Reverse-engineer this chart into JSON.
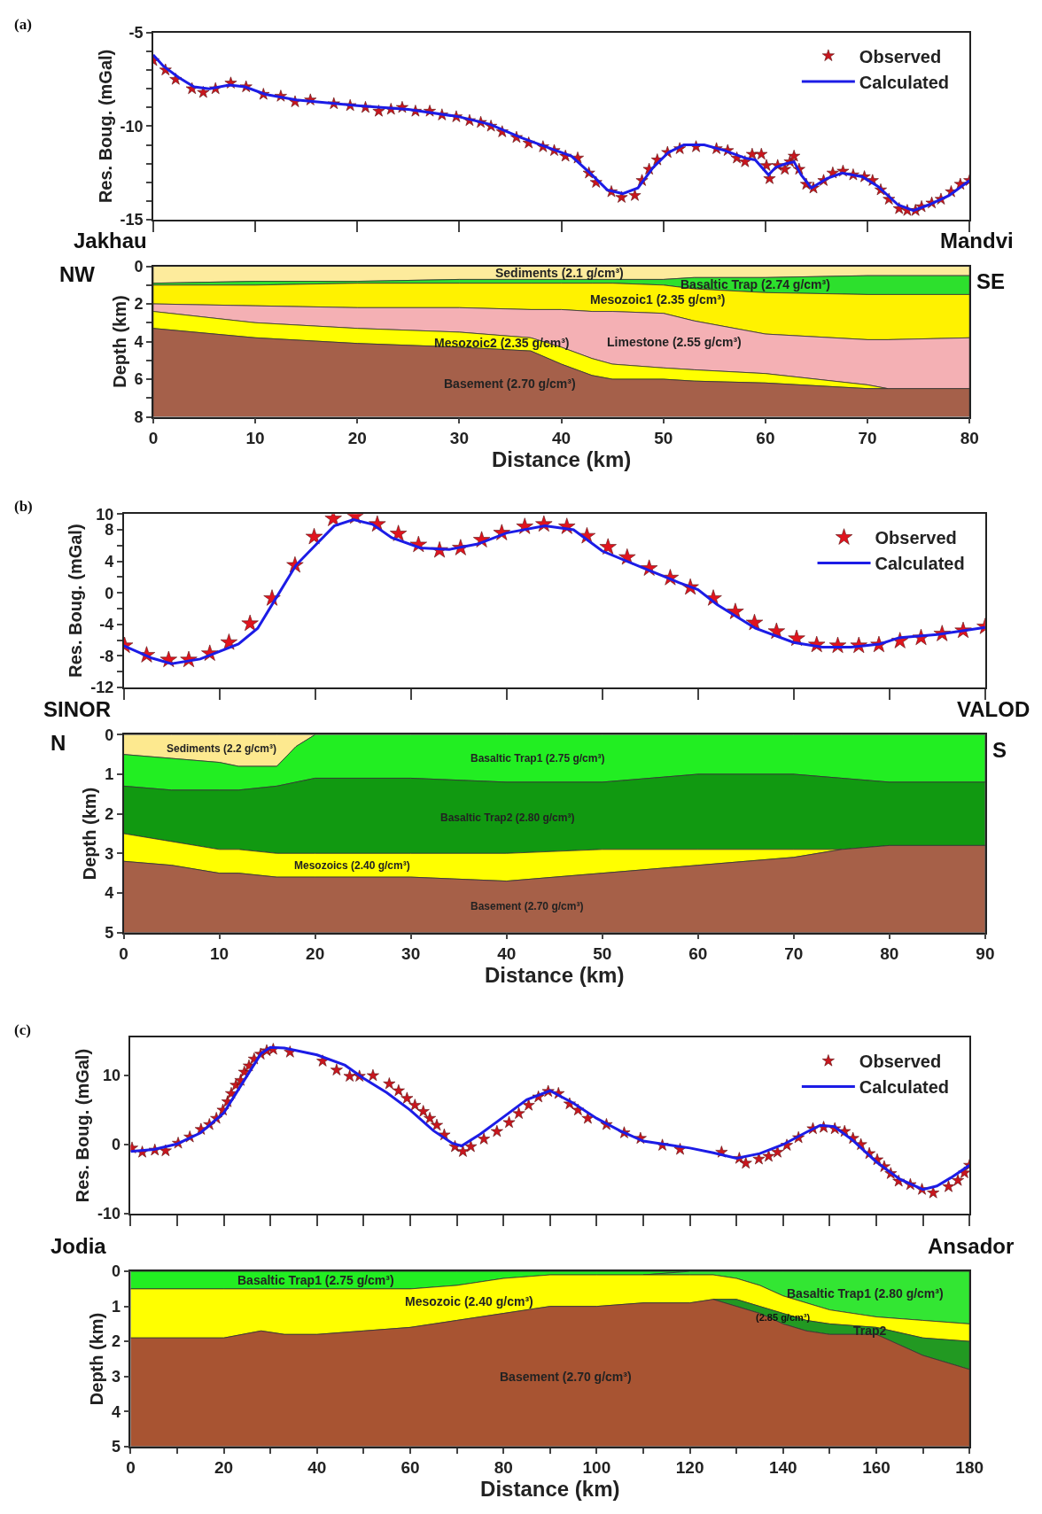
{
  "chart_data": [
    {
      "type": "line",
      "ylabel": "Res. Boug. (mGal)",
      "annotations": [
        "(a)"
      ],
      "xlim": [
        0,
        80
      ],
      "xticks": [
        0,
        10,
        20,
        30,
        40,
        50,
        60,
        70,
        80
      ],
      "ylim": [
        -15,
        -5
      ],
      "yticks": [
        -5,
        {
          "value": -6,
          "label": null
        },
        {
          "value": -7,
          "label": null
        },
        {
          "value": -8,
          "label": null
        },
        {
          "value": -9,
          "label": null
        },
        -10,
        {
          "value": -11,
          "label": null
        },
        {
          "value": -12,
          "label": null
        },
        {
          "value": -13,
          "label": null
        },
        {
          "value": -14,
          "label": null
        },
        -15
      ],
      "tick_labels": "y",
      "legend": "top right",
      "marker": "star",
      "line_style": "solid",
      "series": [
        {
          "name": "Observed",
          "type": "scatter",
          "color": "#c8161e",
          "x": [
            0,
            1.2,
            2.2,
            3.8,
            4.9,
            6.1,
            7.6,
            9.1,
            10.8,
            12.5,
            13.9,
            15.4,
            17.7,
            19.3,
            20.8,
            22.1,
            23.3,
            24.4,
            25.7,
            27.1,
            28.3,
            29.7,
            31.0,
            32.1,
            33.1,
            34.2,
            35.6,
            36.8,
            38.2,
            39.3,
            40.4,
            41.6,
            42.7,
            43.4,
            44.9,
            45.9,
            47.2,
            47.9,
            48.6,
            49.4,
            50.4,
            51.6,
            53.2,
            55.2,
            56.3,
            57.2,
            58.0,
            58.7,
            59.6,
            60.1,
            60.4,
            61.2,
            61.9,
            62.4,
            62.8,
            63.3,
            64.0,
            64.7,
            65.7,
            66.6,
            67.6,
            68.6,
            69.7,
            70.5,
            71.3,
            72.1,
            73.1,
            73.9,
            74.7,
            75.3,
            76.3,
            77.2,
            78.2,
            79.1,
            80
          ],
          "values": [
            -6.5,
            -7.0,
            -7.5,
            -8.0,
            -8.2,
            -8.0,
            -7.7,
            -7.9,
            -8.3,
            -8.4,
            -8.7,
            -8.6,
            -8.8,
            -8.9,
            -9.0,
            -9.2,
            -9.1,
            -9.0,
            -9.2,
            -9.2,
            -9.4,
            -9.5,
            -9.7,
            -9.8,
            -10.0,
            -10.3,
            -10.6,
            -10.9,
            -11.1,
            -11.3,
            -11.6,
            -11.7,
            -12.5,
            -13.0,
            -13.5,
            -13.8,
            -13.7,
            -12.9,
            -12.3,
            -11.8,
            -11.4,
            -11.2,
            -11.1,
            -11.2,
            -11.3,
            -11.7,
            -11.9,
            -11.5,
            -11.5,
            -12.1,
            -12.8,
            -12.1,
            -12.3,
            -11.9,
            -11.6,
            -12.3,
            -13.1,
            -13.3,
            -12.9,
            -12.5,
            -12.4,
            -12.6,
            -12.7,
            -12.9,
            -13.4,
            -13.9,
            -14.4,
            -14.5,
            -14.5,
            -14.3,
            -14.1,
            -13.9,
            -13.5,
            -13.1,
            -12.9
          ]
        },
        {
          "name": "Calculated",
          "type": "line",
          "marker": "none",
          "color": "#1c1ce6",
          "x": [
            0,
            1,
            2.5,
            4,
            5.5,
            7.5,
            9,
            11,
            14,
            20,
            25,
            30,
            33,
            36,
            39,
            41,
            43,
            44.5,
            46,
            47.5,
            49,
            50.5,
            52,
            54,
            56,
            58,
            59,
            60.3,
            61,
            62,
            62.8,
            63.5,
            64.5,
            66,
            67.5,
            69.5,
            71,
            73,
            74.5,
            76,
            78,
            80
          ],
          "values": [
            -6.2,
            -6.8,
            -7.4,
            -7.9,
            -8.0,
            -7.8,
            -7.9,
            -8.3,
            -8.6,
            -8.9,
            -9.1,
            -9.5,
            -9.9,
            -10.6,
            -11.2,
            -11.6,
            -12.6,
            -13.4,
            -13.6,
            -13.3,
            -12.2,
            -11.4,
            -11.0,
            -11.0,
            -11.3,
            -11.7,
            -11.8,
            -12.6,
            -12.2,
            -12.0,
            -11.9,
            -12.6,
            -13.3,
            -12.8,
            -12.5,
            -12.7,
            -13.2,
            -14.2,
            -14.5,
            -14.2,
            -13.7,
            -12.9
          ]
        }
      ]
    },
    {
      "type": "area",
      "stacked": true,
      "xlabel": "Distance (km)",
      "ylabel": "Depth (km)",
      "annotations": [
        "Jakhau",
        "Mandvi",
        "NW",
        "SE"
      ],
      "x": [
        0,
        10,
        20,
        30,
        37,
        40,
        43,
        45,
        50,
        53,
        60,
        70,
        72,
        80
      ],
      "xlim": [
        0,
        80
      ],
      "xticks": [
        0,
        10,
        20,
        30,
        40,
        50,
        60,
        70,
        80
      ],
      "ylim": [
        8,
        0
      ],
      "yticks": [
        0,
        {
          "value": 1,
          "label": null
        },
        2,
        {
          "value": 3,
          "label": null
        },
        4,
        {
          "value": 5,
          "label": null
        },
        6,
        {
          "value": 7,
          "label": null
        },
        8
      ],
      "series": [
        {
          "name": "Sediments (2.1 g/cm³)",
          "color": "#fdeb9c",
          "values": [
            0.9,
            0.8,
            0.8,
            0.7,
            0.7,
            0.7,
            0.7,
            0.7,
            0.7,
            0.6,
            0.6,
            0.5,
            0.5,
            0.5
          ]
        },
        {
          "name": "Basaltic Trap (2.74 g/cm³)",
          "color": "#2de02d",
          "values": [
            0.1,
            0.2,
            0.1,
            0.2,
            0.2,
            0.2,
            0.2,
            0.2,
            0.3,
            0.6,
            0.8,
            1.0,
            1.0,
            1.0
          ]
        },
        {
          "name": "Mesozoic1 (2.35 g/cm³)",
          "color": "#fff200",
          "values": [
            1.0,
            1.1,
            1.3,
            1.3,
            1.4,
            1.4,
            1.5,
            1.5,
            1.5,
            1.7,
            2.2,
            2.4,
            2.4,
            2.3
          ]
        },
        {
          "name": "Limestone (2.55 g/cm³)",
          "color": "#f4b0b4",
          "values": [
            0.4,
            0.9,
            1.1,
            1.3,
            1.5,
            2.0,
            2.5,
            2.8,
            2.9,
            2.6,
            2.1,
            2.4,
            2.6,
            2.7
          ]
        },
        {
          "name": "Mesozoic2 (2.35 g/cm³)",
          "color": "#ffff00",
          "values": [
            0.9,
            0.8,
            0.8,
            0.8,
            0.7,
            0.9,
            0.9,
            0.8,
            0.6,
            0.6,
            0.5,
            0.2,
            0,
            null
          ]
        },
        {
          "name": "Basement (2.70 g/cm³)",
          "color": "#a5604a",
          "values": [
            4.7,
            4.2,
            3.9,
            3.7,
            3.5,
            2.8,
            2.2,
            2.0,
            2.0,
            1.9,
            1.8,
            1.5,
            1.5,
            1.5
          ]
        }
      ]
    },
    {
      "type": "line",
      "ylabel": "Res. Boug. (mGal)",
      "annotations": [
        "(b)"
      ],
      "xlim": [
        0,
        90
      ],
      "xticks": [
        0,
        10,
        20,
        30,
        40,
        50,
        60,
        70,
        80,
        90
      ],
      "ylim": [
        -12,
        10
      ],
      "yticks": [
        -12,
        {
          "value": -10,
          "label": null
        },
        -8,
        {
          "value": -6,
          "label": null
        },
        -4,
        {
          "value": -2,
          "label": null
        },
        0,
        {
          "value": 2,
          "label": null
        },
        4,
        {
          "value": 6,
          "label": null
        },
        8,
        10
      ],
      "tick_labels": "y",
      "legend": "top right",
      "marker": "star",
      "line_style": "solid",
      "series": [
        {
          "name": "Observed",
          "type": "scatter",
          "color": "#e0141e",
          "x": [
            0.1,
            2.4,
            4.7,
            6.8,
            9.0,
            11.0,
            13.2,
            15.5,
            17.9,
            19.9,
            21.9,
            24.2,
            26.5,
            28.7,
            30.8,
            33.0,
            35.2,
            37.4,
            39.5,
            41.9,
            43.9,
            46.3,
            48.4,
            50.6,
            52.6,
            54.9,
            57.1,
            59.2,
            61.6,
            63.9,
            65.9,
            68.2,
            70.3,
            72.4,
            74.6,
            76.8,
            78.9,
            81.1,
            83.3,
            85.5,
            87.7,
            90.0
          ],
          "values": [
            -6.7,
            -7.9,
            -8.5,
            -8.5,
            -7.7,
            -6.3,
            -3.9,
            -0.7,
            3.5,
            7.1,
            9.4,
            9.7,
            8.7,
            7.5,
            6.1,
            5.4,
            5.7,
            6.7,
            7.6,
            8.4,
            8.7,
            8.4,
            7.2,
            5.8,
            4.5,
            3.1,
            1.9,
            0.7,
            -0.7,
            -2.4,
            -3.8,
            -4.9,
            -5.8,
            -6.6,
            -6.7,
            -6.7,
            -6.6,
            -6.1,
            -5.7,
            -5.2,
            -4.8,
            -4.3
          ]
        },
        {
          "name": "Calculated",
          "type": "line",
          "marker": "none",
          "color": "#1c1ce6",
          "x": [
            0,
            3,
            5,
            8,
            12,
            14,
            16,
            18,
            20,
            22,
            24,
            26,
            28,
            31,
            34,
            37,
            40,
            44,
            47,
            50,
            54,
            58,
            60,
            62,
            66,
            70,
            73,
            76,
            79,
            81,
            85,
            90
          ],
          "values": [
            -6.7,
            -8.3,
            -9.0,
            -8.4,
            -6.5,
            -4.5,
            -0.5,
            3.5,
            6.0,
            8.5,
            9.3,
            8.7,
            7.0,
            5.7,
            5.5,
            6.2,
            7.6,
            8.5,
            8.0,
            5.3,
            3.3,
            1.3,
            0.4,
            -1.5,
            -4.5,
            -6.3,
            -6.9,
            -6.9,
            -6.5,
            -5.7,
            -5.3,
            -4.4
          ]
        }
      ]
    },
    {
      "type": "area",
      "stacked": true,
      "xlabel": "Distance (km)",
      "ylabel": "Depth (km)",
      "annotations": [
        "SINOR",
        "VALOD",
        "N",
        "S"
      ],
      "x": [
        0,
        5,
        10,
        12,
        16,
        18,
        20,
        30,
        40,
        50,
        60,
        70,
        75,
        80,
        90
      ],
      "xlim": [
        0,
        90
      ],
      "xticks": [
        0,
        10,
        20,
        30,
        40,
        50,
        60,
        70,
        80,
        90
      ],
      "ylim": [
        5,
        0
      ],
      "yticks": [
        0,
        1,
        2,
        3,
        4,
        5
      ],
      "series": [
        {
          "name": "Sediments (2.2 g/cm³)",
          "color": "#fde98f",
          "values": [
            0.5,
            0.6,
            0.7,
            0.8,
            0.8,
            0.3,
            0,
            null,
            null,
            null,
            null,
            null,
            null,
            null,
            null
          ]
        },
        {
          "name": "Basaltic Trap1 (2.75 g/cm³)",
          "color": "#22ee22",
          "values": [
            0.8,
            0.8,
            0.7,
            0.6,
            0.5,
            0.9,
            1.1,
            1.1,
            1.2,
            1.2,
            1.0,
            1.0,
            1.1,
            1.2,
            1.2
          ]
        },
        {
          "name": "Basaltic Trap2 (2.80 g/cm³)",
          "color": "#119911",
          "values": [
            1.2,
            1.3,
            1.5,
            1.5,
            1.7,
            1.8,
            1.9,
            1.9,
            1.8,
            1.7,
            1.9,
            1.9,
            1.8,
            1.6,
            1.6
          ]
        },
        {
          "name": "Mesozoics (2.40 g/cm³)",
          "color": "#ffff00",
          "values": [
            0.7,
            0.6,
            0.6,
            0.6,
            0.6,
            0.6,
            0.6,
            0.6,
            0.7,
            0.6,
            0.4,
            0.2,
            0,
            null,
            null
          ]
        },
        {
          "name": "Basement (2.70 g/cm³)",
          "color": "#a66048",
          "values": [
            1.8,
            1.7,
            1.5,
            1.5,
            1.4,
            1.4,
            1.4,
            1.4,
            1.3,
            1.5,
            1.7,
            1.9,
            2.1,
            2.2,
            2.2
          ]
        }
      ]
    },
    {
      "type": "line",
      "ylabel": "Res. Boug. (mGal)",
      "annotations": [
        "(c)"
      ],
      "xlim": [
        0,
        180
      ],
      "xticks": [
        0,
        10,
        20,
        30,
        40,
        50,
        60,
        70,
        80,
        90,
        100,
        110,
        120,
        130,
        140,
        150,
        160,
        170,
        180
      ],
      "ylim": [
        -10,
        15.5
      ],
      "yticks": [
        -10,
        0,
        10
      ],
      "tick_labels": "y",
      "legend": "top right",
      "marker": "star",
      "line_style": "solid",
      "series": [
        {
          "name": "Observed",
          "type": "scatter",
          "color": "#c8161e",
          "x": [
            0.3,
            2.5,
            5.2,
            7.5,
            10.2,
            12.7,
            15.1,
            16.9,
            18.4,
            19.8,
            20.8,
            21.6,
            22.6,
            23.6,
            24.4,
            25.4,
            26.5,
            27.9,
            29.2,
            30.6,
            34.2,
            41.2,
            44.2,
            47.0,
            49.1,
            52.0,
            55.5,
            57.5,
            59.3,
            61.0,
            62.8,
            64.2,
            65.7,
            67.3,
            69.6,
            71.3,
            73.0,
            75.8,
            78.6,
            81.2,
            83.3,
            85.4,
            87.5,
            89.6,
            91.8,
            94.2,
            96.0,
            98.1,
            102.1,
            105.9,
            109.4,
            114.1,
            117.9,
            126.8,
            130.6,
            132.0,
            134.8,
            136.9,
            138.8,
            140.8,
            143.3,
            146.4,
            148.7,
            151.1,
            153.2,
            155.0,
            156.7,
            158.5,
            160.2,
            161.7,
            163.1,
            164.8,
            167.3,
            169.8,
            172.2,
            175.5,
            177.5,
            178.9,
            180.0
          ],
          "values": [
            -0.5,
            -1.1,
            -0.8,
            -0.9,
            0.2,
            1.1,
            2.2,
            2.9,
            3.8,
            5.0,
            6.2,
            7.4,
            8.6,
            9.3,
            10.5,
            11.4,
            12.4,
            13.1,
            13.6,
            13.8,
            13.4,
            12.1,
            10.8,
            9.9,
            9.9,
            10.0,
            8.8,
            7.8,
            6.7,
            5.7,
            4.8,
            3.8,
            2.8,
            1.4,
            -0.3,
            -1.0,
            -0.3,
            0.8,
            1.9,
            3.2,
            4.5,
            5.7,
            6.9,
            7.7,
            7.4,
            5.9,
            5.0,
            3.8,
            2.9,
            1.7,
            0.9,
            -0.1,
            -0.7,
            -1.1,
            -2.0,
            -2.7,
            -2.1,
            -1.7,
            -1.1,
            -0.1,
            1.0,
            2.3,
            2.5,
            2.3,
            1.9,
            0.9,
            0.0,
            -1.3,
            -2.2,
            -3.2,
            -4.2,
            -5.3,
            -5.8,
            -6.5,
            -7.0,
            -6.1,
            -5.2,
            -4.1,
            -3.0
          ]
        },
        {
          "name": "Calculated",
          "type": "line",
          "marker": "none",
          "color": "#1c1ce6",
          "x": [
            0,
            5,
            10,
            15,
            20,
            25,
            28,
            30,
            33,
            40,
            46,
            50,
            55,
            60,
            65,
            69,
            71,
            75,
            80,
            85,
            90,
            95,
            100,
            105,
            110,
            115,
            120,
            125,
            130,
            135,
            140,
            145,
            148,
            151,
            155,
            160,
            165,
            170,
            173,
            176,
            180
          ],
          "values": [
            -1.0,
            -0.7,
            0.1,
            1.7,
            4.6,
            10.0,
            13.2,
            14.1,
            14.0,
            13.0,
            11.5,
            9.6,
            7.5,
            5.0,
            2.0,
            0.2,
            -0.2,
            1.5,
            4.0,
            6.5,
            7.8,
            6.0,
            3.8,
            2.0,
            0.5,
            0.0,
            -0.5,
            -1.2,
            -2.0,
            -1.3,
            0.0,
            1.8,
            2.8,
            2.6,
            0.6,
            -2.5,
            -5.0,
            -6.5,
            -6.0,
            -4.8,
            -3.0
          ]
        }
      ]
    },
    {
      "type": "area",
      "stacked": true,
      "xlabel": "Distance (km)",
      "ylabel": "Depth (km)",
      "annotations": [
        "Jodia",
        "Ansador",
        "(2.85 g/cm³)"
      ],
      "x": [
        0,
        10,
        20,
        28,
        33,
        40,
        50,
        60,
        70,
        80,
        90,
        100,
        110,
        120,
        125,
        130,
        135,
        140,
        145,
        150,
        160,
        170,
        180
      ],
      "xlim": [
        0,
        180
      ],
      "xticks": [
        0,
        {
          "value": 10,
          "label": null
        },
        20,
        {
          "value": 30,
          "label": null
        },
        40,
        {
          "value": 50,
          "label": null
        },
        60,
        {
          "value": 70,
          "label": null
        },
        80,
        {
          "value": 90,
          "label": null
        },
        100,
        {
          "value": 110,
          "label": null
        },
        120,
        {
          "value": 130,
          "label": null
        },
        140,
        {
          "value": 150,
          "label": null
        },
        160,
        {
          "value": 170,
          "label": null
        },
        180
      ],
      "ylim": [
        5,
        0
      ],
      "yticks": [
        0,
        1,
        2,
        3,
        4,
        5
      ],
      "series": [
        {
          "name": "Basaltic Trap1 (2.75 g/cm³)",
          "color": "#22ee22",
          "values": [
            0.5,
            0.5,
            0.5,
            0.5,
            0.5,
            0.5,
            0.5,
            0.5,
            0.4,
            0.2,
            0.1,
            0.1,
            0.1,
            0,
            null,
            null,
            null,
            null,
            null,
            null,
            null,
            null,
            null
          ]
        },
        {
          "name": "Basaltic Trap1 (2.80 g/cm³)",
          "color": "#33e633",
          "values": [
            null,
            null,
            null,
            null,
            null,
            null,
            null,
            null,
            null,
            null,
            null,
            null,
            0,
            0.1,
            0.1,
            0.2,
            0.4,
            0.7,
            0.9,
            1.1,
            1.3,
            1.4,
            1.5
          ]
        },
        {
          "name": "Mesozoic (2.40 g/cm³)",
          "color": "#ffff00",
          "values": [
            1.4,
            1.4,
            1.4,
            1.2,
            1.3,
            1.3,
            1.2,
            1.1,
            1.0,
            1.0,
            0.9,
            0.9,
            0.8,
            0.8,
            0.7,
            0.6,
            0.6,
            0.5,
            0.5,
            0.4,
            0.3,
            0.5,
            0.5
          ]
        },
        {
          "name": "Trap2",
          "color": "#229922",
          "values": [
            null,
            null,
            null,
            null,
            null,
            null,
            null,
            null,
            null,
            null,
            null,
            null,
            null,
            null,
            0,
            0.2,
            0.2,
            0.3,
            0.3,
            0.3,
            0.2,
            0.5,
            0.8
          ]
        },
        {
          "name": "Basement (2.70 g/cm³)",
          "color": "#a85432",
          "values": [
            3.1,
            3.1,
            3.1,
            3.3,
            3.2,
            3.2,
            3.3,
            3.4,
            3.6,
            3.8,
            4.0,
            4.0,
            4.1,
            4.1,
            4.2,
            4.0,
            3.8,
            3.5,
            3.3,
            3.2,
            3.2,
            2.6,
            2.2
          ]
        }
      ]
    }
  ]
}
